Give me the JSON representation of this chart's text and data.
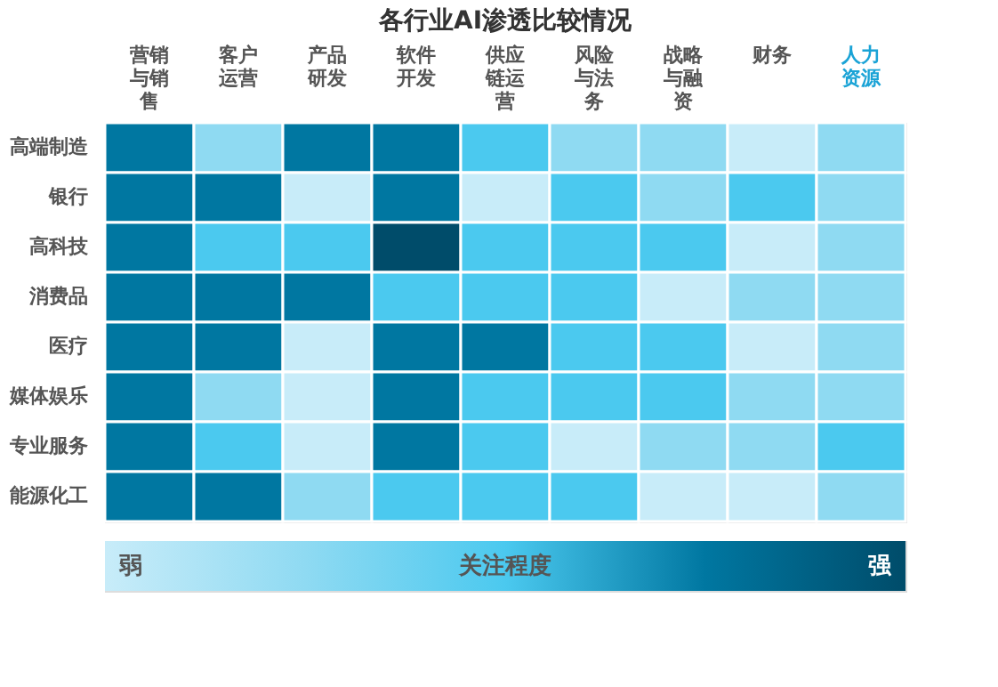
{
  "chart_data": {
    "type": "heatmap",
    "title": "各行业AI渗透比较情况",
    "clabel": "关注程度",
    "clim": [
      1,
      5
    ],
    "cticks": [
      {
        "value": 1,
        "label": "弱"
      },
      {
        "value": 5,
        "label": "强"
      }
    ],
    "colors": [
      "#c8ecf9",
      "#8fdaf2",
      "#4bc9ef",
      "#0077a1",
      "#004c6a"
    ],
    "categories": [
      "营销与销售",
      "客户运营",
      "产品研发",
      "软件开发",
      "供应链运营",
      "风险与法务",
      "战略与融资",
      "财务",
      "人力资源"
    ],
    "y_categories": [
      "高端制造",
      "银行",
      "高科技",
      "消费品",
      "医疗",
      "媒体娱乐",
      "专业服务",
      "能源化工"
    ],
    "cells": [
      [
        4,
        2,
        4,
        4,
        3,
        2,
        2,
        1,
        2
      ],
      [
        4,
        4,
        1,
        4,
        1,
        3,
        2,
        3,
        2
      ],
      [
        4,
        3,
        3,
        5,
        3,
        3,
        3,
        1,
        2
      ],
      [
        4,
        4,
        4,
        3,
        3,
        3,
        1,
        2,
        2
      ],
      [
        4,
        4,
        1,
        4,
        4,
        3,
        3,
        1,
        2
      ],
      [
        4,
        2,
        1,
        4,
        3,
        3,
        3,
        2,
        2
      ],
      [
        4,
        3,
        1,
        4,
        3,
        1,
        2,
        2,
        3
      ],
      [
        4,
        4,
        2,
        3,
        3,
        3,
        1,
        1,
        2
      ]
    ]
  }
}
